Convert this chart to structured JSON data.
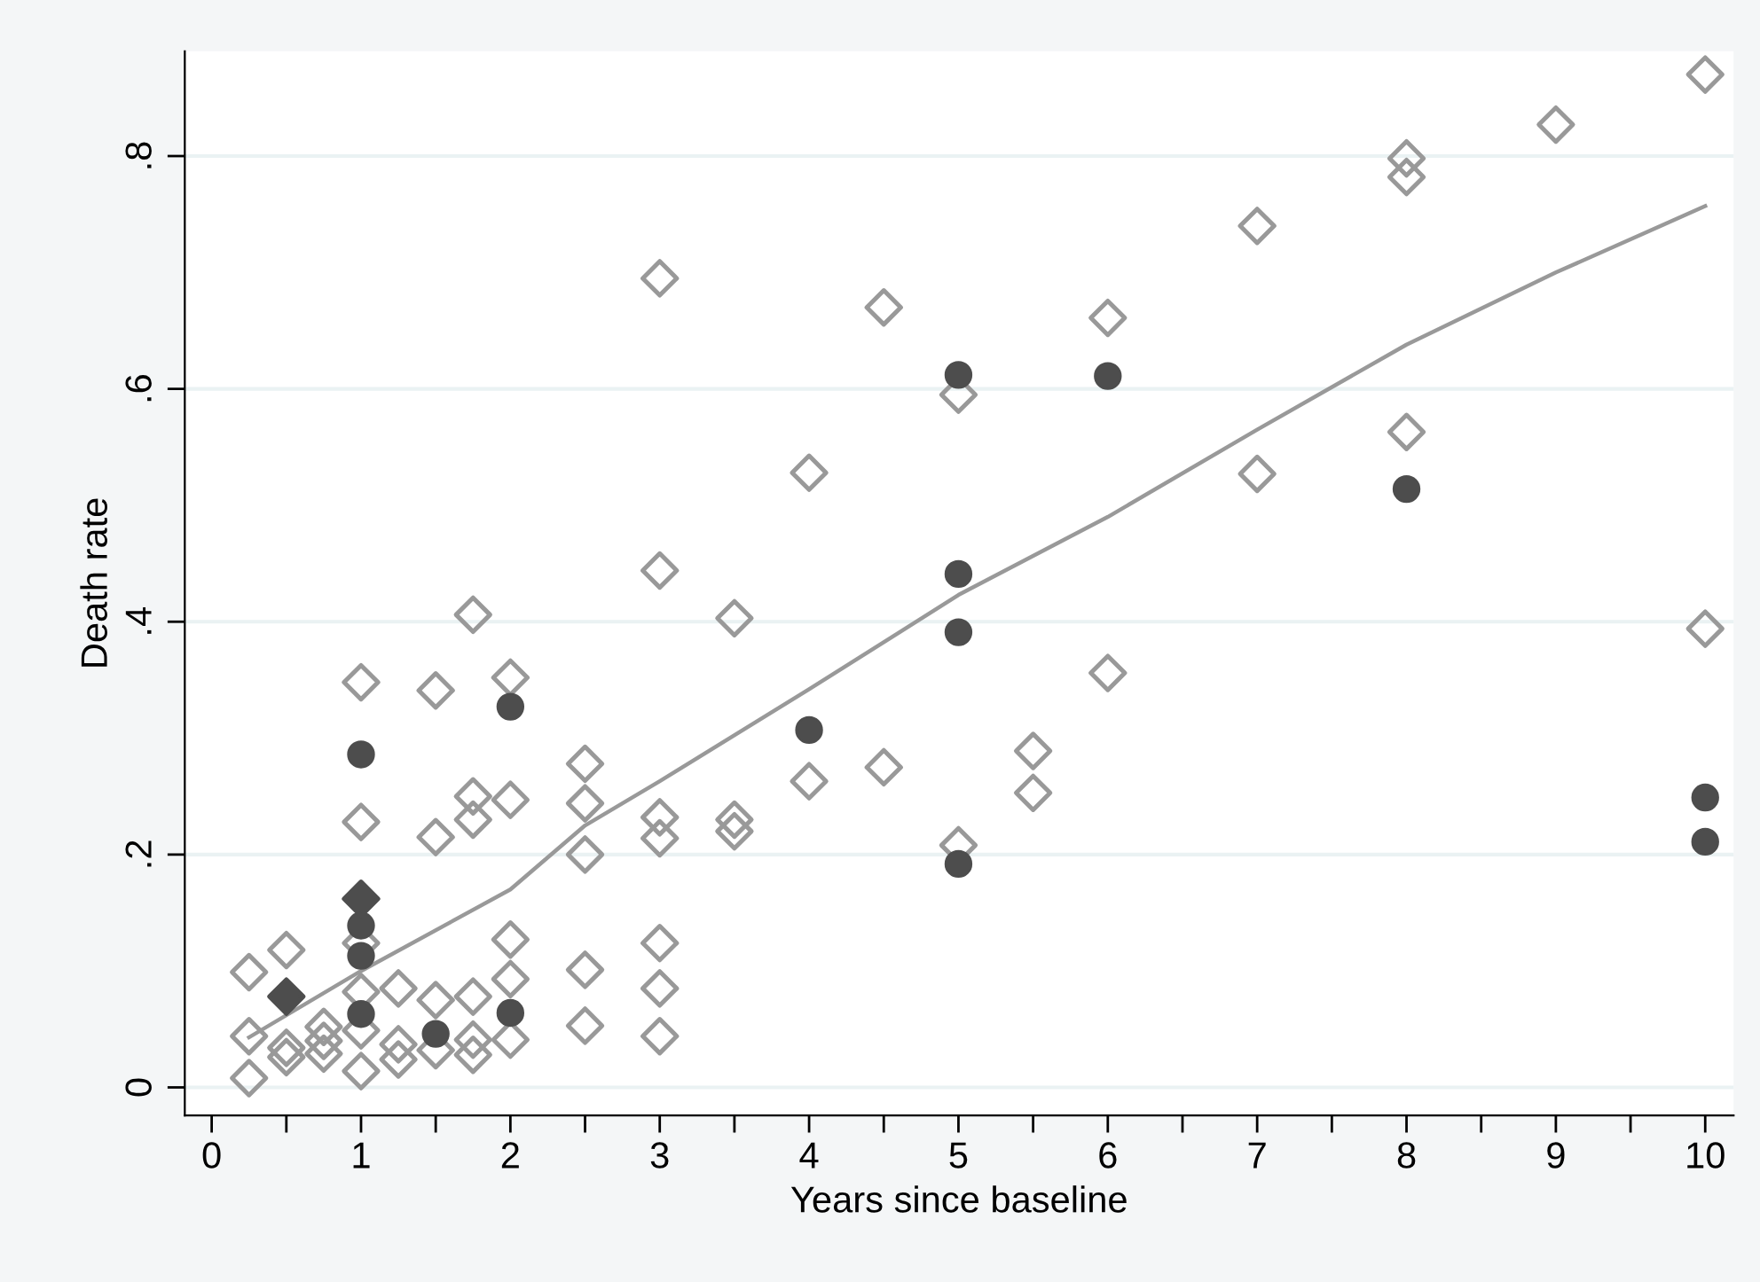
{
  "chart_data": {
    "type": "scatter",
    "xlabel": "Years since baseline",
    "ylabel": "Death rate",
    "xlim": [
      -0.18,
      10.19
    ],
    "ylim": [
      -0.024,
      0.89
    ],
    "xticks": [
      0,
      {
        "value": 0.5,
        "label": null
      },
      1,
      {
        "value": 1.5,
        "label": null
      },
      2,
      {
        "value": 2.5,
        "label": null
      },
      3,
      {
        "value": 3.5,
        "label": null
      },
      4,
      {
        "value": 4.5,
        "label": null
      },
      5,
      {
        "value": 5.5,
        "label": null
      },
      6,
      {
        "value": 6.5,
        "label": null
      },
      7,
      {
        "value": 7.5,
        "label": null
      },
      8,
      {
        "value": 8.5,
        "label": null
      },
      9,
      {
        "value": 9.5,
        "label": null
      },
      10
    ],
    "yticks": [
      0,
      {
        "value": 0.2,
        "label": ".2"
      },
      {
        "value": 0.4,
        "label": ".4"
      },
      {
        "value": 0.6,
        "label": ".6"
      },
      {
        "value": 0.8,
        "label": ".8"
      }
    ],
    "grid": "y",
    "legend": false,
    "series": [
      {
        "marker": "diamond",
        "color": "#999999",
        "x": [
          0.25,
          0.25,
          0.25,
          0.5,
          0.5,
          0.5,
          0.75,
          0.75,
          0.75,
          1,
          1,
          1,
          1,
          1,
          1,
          1.25,
          1.25,
          1.25,
          1.5,
          1.5,
          1.5,
          1.5,
          1.75,
          1.75,
          1.75,
          1.75,
          1.75,
          1.75,
          2,
          2,
          2,
          2,
          2,
          2.5,
          2.5,
          2.5,
          2.5,
          2.5,
          3,
          3,
          3,
          3,
          3,
          3,
          3,
          3.5,
          3.5,
          3.5,
          4,
          4,
          4.5,
          4.5,
          5,
          5,
          5.5,
          5.5,
          6,
          6,
          7,
          7,
          8,
          8,
          8,
          9,
          10,
          10
        ],
        "values": [
          0.099,
          0.044,
          0.008,
          0.118,
          0.034,
          0.026,
          0.052,
          0.04,
          0.029,
          0.348,
          0.228,
          0.124,
          0.082,
          0.049,
          0.014,
          0.085,
          0.037,
          0.024,
          0.341,
          0.215,
          0.075,
          0.032,
          0.406,
          0.25,
          0.23,
          0.078,
          0.041,
          0.028,
          0.352,
          0.247,
          0.127,
          0.093,
          0.041,
          0.278,
          0.244,
          0.2,
          0.101,
          0.053,
          0.695,
          0.444,
          0.232,
          0.214,
          0.124,
          0.085,
          0.044,
          0.403,
          0.23,
          0.22,
          0.528,
          0.263,
          0.67,
          0.275,
          0.595,
          0.208,
          0.289,
          0.253,
          0.661,
          0.356,
          0.74,
          0.527,
          0.798,
          0.782,
          0.563,
          0.827,
          0.87,
          0.394
        ]
      },
      {
        "marker": "circle",
        "color": "#4d4d4d",
        "x": [
          1,
          1,
          1,
          1,
          1.5,
          2,
          2,
          4,
          5,
          5,
          5,
          5,
          6,
          8,
          10,
          10
        ],
        "values": [
          0.286,
          0.139,
          0.113,
          0.063,
          0.046,
          0.327,
          0.064,
          0.307,
          0.612,
          0.441,
          0.391,
          0.192,
          0.611,
          0.514,
          0.249,
          0.211
        ]
      },
      {
        "marker": "diamond",
        "color": "#4d4d4d",
        "x": [
          0.5,
          1
        ],
        "values": [
          0.078,
          0.162
        ]
      },
      {
        "type": "line",
        "marker": "none",
        "color": "#999999",
        "x": [
          0.25,
          1,
          2,
          2.5,
          3,
          4,
          5,
          6,
          7,
          8,
          9,
          10
        ],
        "values": [
          0.043,
          0.1,
          0.17,
          0.225,
          0.263,
          0.342,
          0.423,
          0.49,
          0.565,
          0.638,
          0.7,
          0.757
        ]
      }
    ]
  }
}
